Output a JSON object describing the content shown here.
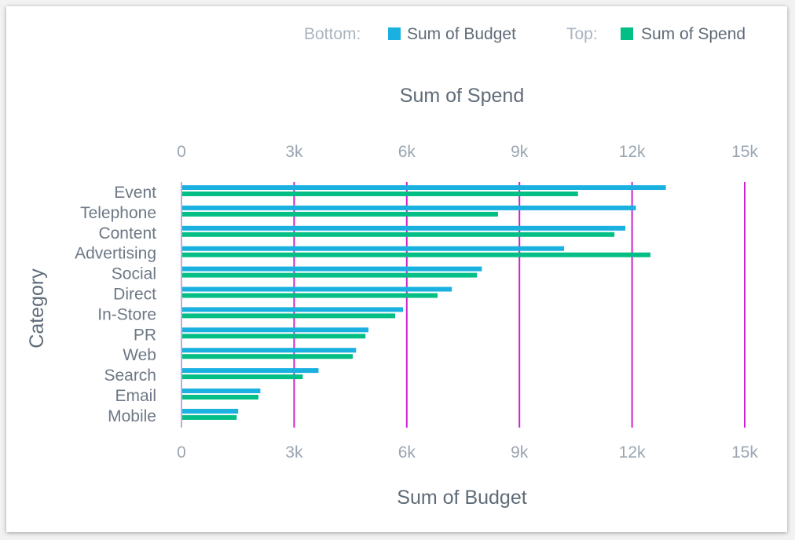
{
  "chart_data": {
    "type": "bar",
    "orientation": "horizontal",
    "categories": [
      "Event",
      "Telephone",
      "Content",
      "Advertising",
      "Social",
      "Direct",
      "In-Store",
      "PR",
      "Web",
      "Search",
      "Email",
      "Mobile"
    ],
    "series": [
      {
        "name": "Sum of Budget",
        "axis": "bottom",
        "color": "#1ab1e0",
        "values": [
          12900,
          12100,
          11820,
          10190,
          8000,
          7200,
          5900,
          4980,
          4650,
          3650,
          2100,
          1510
        ]
      },
      {
        "name": "Sum of Spend",
        "axis": "top",
        "color": "#03bf86",
        "values": [
          10560,
          8430,
          11530,
          12490,
          7870,
          6820,
          5690,
          4900,
          4560,
          3230,
          2050,
          1470
        ]
      }
    ],
    "legend": {
      "bottom_label": "Bottom:",
      "top_label": "Top:",
      "placement": "top-right"
    },
    "xlabel_top": "Sum of Spend",
    "xlabel_bottom": "Sum of Budget",
    "ylabel": "Category",
    "xlim": [
      0,
      15000
    ],
    "ticks": [
      0,
      3000,
      6000,
      9000,
      12000,
      15000
    ],
    "tick_labels": [
      "0",
      "3k",
      "6k",
      "9k",
      "12k",
      "15k"
    ],
    "grid_color": "#cc22cc",
    "grid": true
  }
}
